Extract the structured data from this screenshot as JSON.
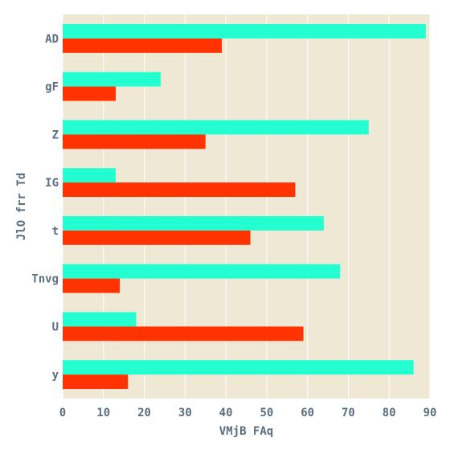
{
  "chart_data": {
    "type": "bar",
    "orientation": "horizontal",
    "categories": [
      "AD",
      "gF",
      "Z",
      "IG",
      "t",
      "Tnvg",
      "U",
      "y"
    ],
    "series": [
      {
        "color": "#24ffd2",
        "values": [
          89,
          24,
          75,
          13,
          64,
          68,
          18,
          86
        ]
      },
      {
        "color": "#ff3300",
        "values": [
          39,
          13,
          35,
          57,
          46,
          14,
          59,
          16
        ]
      }
    ],
    "xlabel": "VMjB FAq",
    "ylabel": "JlO frr Td",
    "xlim": [
      0,
      90
    ],
    "xticks": [
      0,
      10,
      20,
      30,
      40,
      50,
      60,
      70,
      80,
      90
    ],
    "grid": true,
    "background_color": "#efe8d5"
  }
}
